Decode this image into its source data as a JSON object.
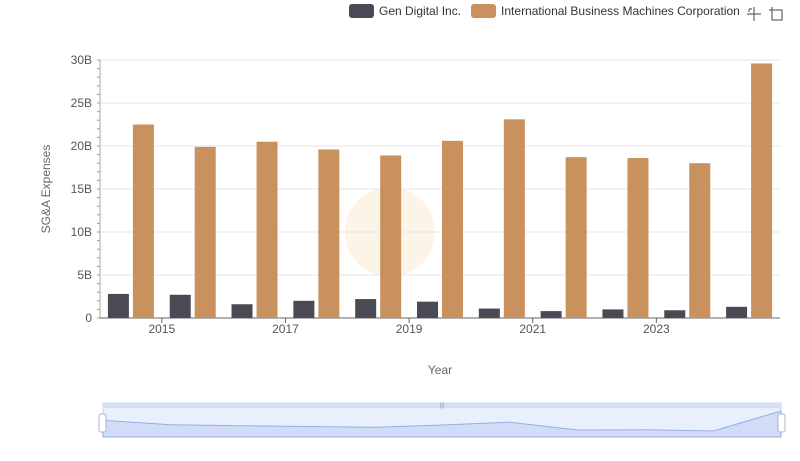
{
  "chart_data": {
    "type": "bar",
    "title": "",
    "xlabel": "Year",
    "ylabel": "SG&A Expenses",
    "ylim": [
      0,
      30
    ],
    "y_unit": "B",
    "yticks": [
      "0",
      "5B",
      "10B",
      "15B",
      "20B",
      "25B",
      "30B"
    ],
    "x_tick_labels": [
      "2015",
      "2017",
      "2019",
      "2021",
      "2023"
    ],
    "categories": [
      "2014",
      "2015",
      "2016",
      "2017",
      "2018",
      "2019",
      "2020",
      "2021",
      "2022",
      "2023",
      "2024"
    ],
    "series": [
      {
        "name": "Gen Digital Inc.",
        "color": "#4a4a55",
        "values": [
          2.8,
          2.7,
          1.6,
          2.0,
          2.2,
          1.9,
          1.1,
          0.8,
          1.0,
          0.9,
          1.3
        ]
      },
      {
        "name": "International Business Machines Corporation",
        "color": "#c8915e",
        "values": [
          22.5,
          19.9,
          20.5,
          19.6,
          18.9,
          20.6,
          23.1,
          18.7,
          18.6,
          18.0,
          29.6
        ]
      }
    ],
    "legend_position": "top-right",
    "grid": true,
    "data_zoom": {
      "range_percent": [
        0,
        100
      ]
    }
  },
  "toolbox": {
    "icons": [
      "zoom-icon",
      "restore-icon"
    ]
  }
}
